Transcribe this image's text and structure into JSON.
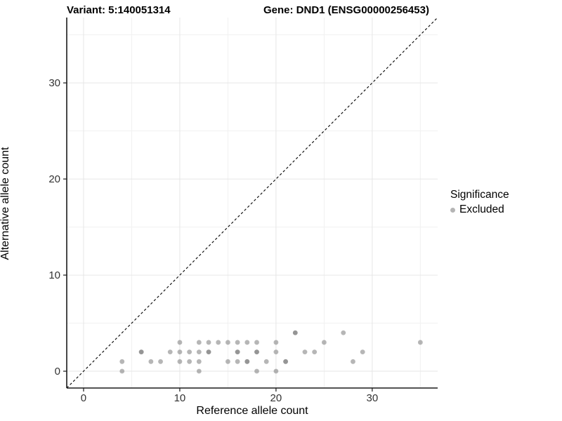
{
  "chart_data": {
    "type": "scatter",
    "titles": {
      "left": "Variant: 5:140051314",
      "right": "Gene: DND1 (ENSG00000256453)"
    },
    "xlabel": "Reference allele count",
    "ylabel": "Alternative allele count",
    "x_ticks": [
      0,
      10,
      20,
      30
    ],
    "y_ticks": [
      0,
      10,
      20,
      30
    ],
    "x_minor_gridlines": [
      5,
      15,
      25,
      35
    ],
    "y_minor_gridlines": [
      5,
      15,
      25,
      35
    ],
    "xlim": [
      -1.75,
      36.8
    ],
    "ylim": [
      -1.75,
      36.8
    ],
    "grid": true,
    "identity_line": {
      "show": true,
      "style": "dashed",
      "color": "#000000"
    },
    "legend": {
      "title": "Significance",
      "position": "right",
      "items": [
        {
          "label": "Excluded",
          "color": "#b5b5b5"
        }
      ]
    },
    "series": [
      {
        "name": "Excluded",
        "color": "#7a7a7a",
        "opacity": 0.55,
        "points": [
          [
            4,
            0
          ],
          [
            12,
            0
          ],
          [
            18,
            0
          ],
          [
            20,
            0
          ],
          [
            4,
            1
          ],
          [
            7,
            1
          ],
          [
            8,
            1
          ],
          [
            10,
            1
          ],
          [
            11,
            1
          ],
          [
            12,
            1
          ],
          [
            15,
            1
          ],
          [
            16,
            1
          ],
          [
            17,
            1,
            2
          ],
          [
            19,
            1
          ],
          [
            21,
            1,
            2
          ],
          [
            28,
            1
          ],
          [
            6,
            2,
            2
          ],
          [
            9,
            2
          ],
          [
            10,
            2
          ],
          [
            11,
            2
          ],
          [
            12,
            2
          ],
          [
            13,
            2,
            2
          ],
          [
            16,
            2,
            2
          ],
          [
            18,
            2,
            2
          ],
          [
            20,
            2
          ],
          [
            23,
            2
          ],
          [
            24,
            2
          ],
          [
            29,
            2
          ],
          [
            10,
            3
          ],
          [
            12,
            3
          ],
          [
            13,
            3
          ],
          [
            14,
            3
          ],
          [
            15,
            3
          ],
          [
            16,
            3
          ],
          [
            17,
            3
          ],
          [
            18,
            3
          ],
          [
            20,
            3
          ],
          [
            25,
            3
          ],
          [
            35,
            3
          ],
          [
            22,
            4,
            2
          ],
          [
            27,
            4
          ]
        ]
      }
    ]
  },
  "colors": {
    "background": "#ffffff",
    "grid_major": "#e6e6e6",
    "grid_minor": "#f1f1f1",
    "axis_line": "#1a1a1a",
    "tick_label": "#333333",
    "point": "#7a7a7a",
    "dashed_line": "#000000"
  }
}
